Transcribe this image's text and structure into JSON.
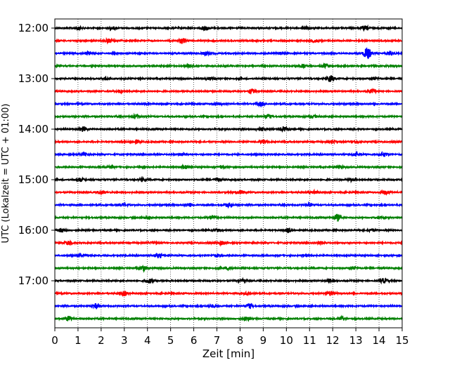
{
  "chart_data": {
    "type": "line",
    "title": "",
    "xlabel": "Zeit  [min]",
    "ylabel": "UTC (Lokalzeit = UTC + 01:00)",
    "xlim": [
      0,
      15
    ],
    "xticks": [
      0,
      1,
      2,
      3,
      4,
      5,
      6,
      7,
      8,
      9,
      10,
      11,
      12,
      13,
      14,
      15
    ],
    "xtick_labels": [
      "0",
      "1",
      "2",
      "3",
      "4",
      "5",
      "6",
      "7",
      "8",
      "9",
      "10",
      "11",
      "12",
      "13",
      "14",
      "15"
    ],
    "ylabel_ticks": [
      {
        "label": "12:00",
        "trace": 0
      },
      {
        "label": "13:00",
        "trace": 4
      },
      {
        "label": "14:00",
        "trace": 8
      },
      {
        "label": "15:00",
        "trace": 12
      },
      {
        "label": "16:00",
        "trace": 16
      },
      {
        "label": "17:00",
        "trace": 20
      }
    ],
    "grid": "vertical dotted",
    "trace_interval_min": 15,
    "color_cycle": [
      "#000000",
      "#ff0000",
      "#0000ff",
      "#008000"
    ],
    "series": [
      {
        "start": "12:00",
        "events": [
          [
            1.0,
            0.35
          ],
          [
            2.5,
            0.3
          ],
          [
            6.5,
            0.5
          ],
          [
            10.8,
            0.4
          ],
          [
            13.4,
            0.45
          ]
        ]
      },
      {
        "start": "12:15",
        "events": [
          [
            2.3,
            0.4
          ],
          [
            5.5,
            0.6
          ],
          [
            11.2,
            0.3
          ]
        ]
      },
      {
        "start": "12:30",
        "events": [
          [
            1.5,
            0.3
          ],
          [
            6.5,
            0.4
          ],
          [
            9.8,
            0.3
          ],
          [
            13.5,
            1.3
          ],
          [
            14.5,
            0.5
          ]
        ]
      },
      {
        "start": "12:45",
        "events": [
          [
            5.8,
            0.3
          ],
          [
            10.7,
            0.4
          ],
          [
            11.7,
            0.5
          ]
        ]
      },
      {
        "start": "13:00",
        "events": [
          [
            2.2,
            0.3
          ],
          [
            6.7,
            0.3
          ],
          [
            11.9,
            0.75
          ],
          [
            13.8,
            0.3
          ]
        ]
      },
      {
        "start": "13:15",
        "events": [
          [
            2.8,
            0.3
          ],
          [
            8.5,
            0.45
          ],
          [
            13.7,
            0.35
          ]
        ]
      },
      {
        "start": "13:30",
        "events": [
          [
            7.0,
            0.3
          ],
          [
            8.9,
            0.4
          ]
        ]
      },
      {
        "start": "13:45",
        "events": [
          [
            3.5,
            0.5
          ],
          [
            9.2,
            0.4
          ],
          [
            11.2,
            0.3
          ]
        ]
      },
      {
        "start": "14:00",
        "events": [
          [
            1.2,
            0.5
          ],
          [
            8.9,
            0.4
          ],
          [
            9.9,
            0.45
          ]
        ]
      },
      {
        "start": "14:15",
        "events": [
          [
            3.5,
            0.3
          ],
          [
            9.0,
            0.4
          ],
          [
            12.0,
            0.3
          ],
          [
            13.0,
            0.3
          ]
        ]
      },
      {
        "start": "14:30",
        "events": [
          [
            1.2,
            0.3
          ],
          [
            5.5,
            0.3
          ],
          [
            13.0,
            0.3
          ],
          [
            14.2,
            0.5
          ]
        ]
      },
      {
        "start": "14:45",
        "events": [
          [
            2.4,
            0.3
          ],
          [
            5.6,
            0.4
          ],
          [
            7.2,
            0.3
          ],
          [
            12.3,
            0.4
          ]
        ]
      },
      {
        "start": "15:00",
        "events": [
          [
            1.1,
            0.4
          ],
          [
            3.8,
            0.35
          ],
          [
            7.0,
            0.35
          ],
          [
            12.8,
            0.3
          ]
        ]
      },
      {
        "start": "15:15",
        "events": [
          [
            2.0,
            0.45
          ],
          [
            8.0,
            0.4
          ],
          [
            11.2,
            0.3
          ],
          [
            14.3,
            0.45
          ]
        ]
      },
      {
        "start": "15:30",
        "events": [
          [
            3.0,
            0.3
          ],
          [
            5.8,
            0.45
          ],
          [
            7.5,
            0.45
          ],
          [
            11.0,
            0.3
          ]
        ]
      },
      {
        "start": "15:45",
        "events": [
          [
            4.0,
            0.3
          ],
          [
            6.8,
            0.5
          ],
          [
            12.2,
            0.7
          ],
          [
            14.0,
            0.3
          ]
        ]
      },
      {
        "start": "16:00",
        "events": [
          [
            0.3,
            0.5
          ],
          [
            7.0,
            0.3
          ],
          [
            10.1,
            0.5
          ],
          [
            13.7,
            0.3
          ]
        ]
      },
      {
        "start": "16:15",
        "events": [
          [
            0.6,
            0.45
          ],
          [
            4.3,
            0.3
          ],
          [
            7.2,
            0.4
          ],
          [
            11.5,
            0.3
          ]
        ]
      },
      {
        "start": "16:30",
        "events": [
          [
            1.2,
            0.3
          ],
          [
            4.5,
            0.45
          ],
          [
            7.0,
            0.35
          ],
          [
            10.8,
            0.3
          ]
        ]
      },
      {
        "start": "16:45",
        "events": [
          [
            3.8,
            0.6
          ],
          [
            7.5,
            0.35
          ],
          [
            12.9,
            0.3
          ]
        ]
      },
      {
        "start": "17:00",
        "events": [
          [
            4.1,
            0.5
          ],
          [
            8.1,
            0.3
          ],
          [
            11.9,
            0.35
          ],
          [
            14.2,
            0.55
          ]
        ]
      },
      {
        "start": "17:15",
        "events": [
          [
            3.0,
            0.5
          ],
          [
            8.3,
            0.3
          ],
          [
            11.9,
            0.5
          ]
        ]
      },
      {
        "start": "17:30",
        "events": [
          [
            1.8,
            0.6
          ],
          [
            6.8,
            0.3
          ],
          [
            8.4,
            0.45
          ]
        ]
      },
      {
        "start": "17:45",
        "events": [
          [
            0.6,
            0.55
          ],
          [
            8.3,
            0.45
          ],
          [
            12.4,
            0.35
          ]
        ]
      }
    ]
  }
}
